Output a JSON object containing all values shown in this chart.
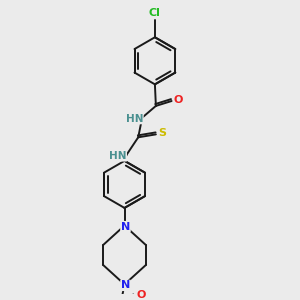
{
  "bg_color": "#ebebeb",
  "bond_color": "#1a1a1a",
  "atom_colors": {
    "Cl": "#22bb22",
    "O": "#ee2222",
    "N": "#2222ee",
    "S": "#ccbb00",
    "H_label": "#4a9090"
  },
  "figsize": [
    3.0,
    3.0
  ],
  "dpi": 100,
  "xlim": [
    0,
    300
  ],
  "ylim": [
    0,
    300
  ]
}
